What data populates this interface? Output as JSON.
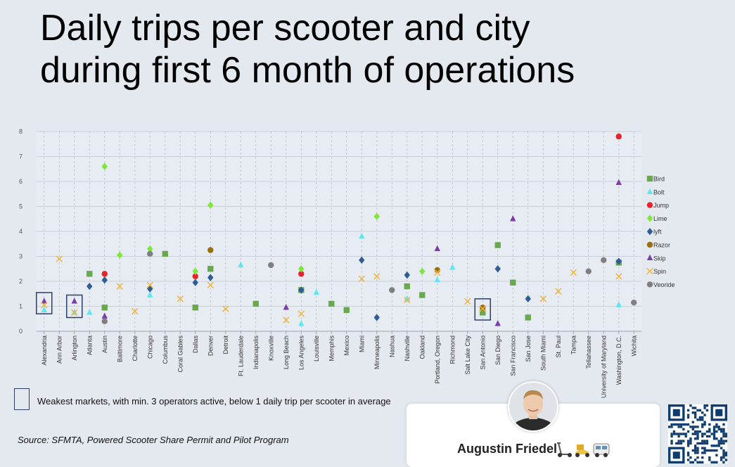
{
  "title_line1": "Daily trips per scooter and city",
  "title_line2": "during first 6 month of operations",
  "legend_note": "Weakest markets, with min. 3 operators active, below 1 daily trip per scooter in average",
  "source": "Source: SFMTA, Powered Scooter Share Permit and Pilot Program",
  "author": "Augustin Friedel",
  "author_icons": [
    "scooter-icon",
    "delivery-scooter-icon",
    "minibus-icon"
  ],
  "chart_data": {
    "type": "scatter",
    "title": "",
    "xlabel": "",
    "ylabel": "",
    "ylim": [
      0,
      8
    ],
    "yticks": [
      0,
      1,
      2,
      3,
      4,
      5,
      6,
      7,
      8
    ],
    "grid": true,
    "legend_position": "right",
    "categories": [
      "Alexandria",
      "Ann Arbor",
      "Arlington",
      "Atlanta",
      "Austin",
      "Baltimore",
      "Charlotte",
      "Chicago",
      "Columbus",
      "Coral Gables",
      "Dallas",
      "Denver",
      "Detroit",
      "Ft. Lauderdale",
      "Indianapolis",
      "Knoxville",
      "Long Beach",
      "Los Angeles",
      "Louisville",
      "Memphis",
      "Mexico",
      "Miami",
      "Minneapolis",
      "Nashua",
      "Nashville",
      "Oakland",
      "Portland, Oregon",
      "Richmond",
      "Salt Lake City",
      "San Antonio",
      "San Diego",
      "San Francisco",
      "San Jose",
      "South Miami",
      "St. Paul",
      "Tampa",
      "Tellahassee",
      "University of Maryland",
      "Washington, D.C.",
      "Wichita"
    ],
    "highlighted_categories": [
      "Alexandria",
      "Arlington",
      "San Antonio"
    ],
    "series": [
      {
        "name": "Bird",
        "color": "#6aa84f",
        "marker": "square",
        "points": [
          [
            "Atlanta",
            2.3
          ],
          [
            "Austin",
            0.95
          ],
          [
            "Columbus",
            3.1
          ],
          [
            "Dallas",
            0.95
          ],
          [
            "Denver",
            2.5
          ],
          [
            "Indianapolis",
            1.1
          ],
          [
            "Los Angeles",
            1.65
          ],
          [
            "Memphis",
            1.1
          ],
          [
            "Mexico",
            0.85
          ],
          [
            "Nashville",
            1.8
          ],
          [
            "Oakland",
            1.45
          ],
          [
            "San Antonio",
            0.75
          ],
          [
            "San Diego",
            3.45
          ],
          [
            "San Francisco",
            1.95
          ],
          [
            "San Jose",
            0.55
          ],
          [
            "Washington, D.C.",
            2.75
          ]
        ]
      },
      {
        "name": "Bolt",
        "color": "#5fe6f0",
        "marker": "triangle",
        "points": [
          [
            "Alexandria",
            0.85
          ],
          [
            "Arlington",
            0.75
          ],
          [
            "Atlanta",
            0.75
          ],
          [
            "Chicago",
            1.45
          ],
          [
            "Ft. Lauderdale",
            2.65
          ],
          [
            "Los Angeles",
            0.3
          ],
          [
            "Louisville",
            1.55
          ],
          [
            "Miami",
            3.8
          ],
          [
            "Nashville",
            1.3
          ],
          [
            "Portland, Oregon",
            2.05
          ],
          [
            "Richmond",
            2.55
          ],
          [
            "Washington, D.C.",
            1.05
          ]
        ]
      },
      {
        "name": "Jump",
        "color": "#e3242b",
        "marker": "circle",
        "points": [
          [
            "Austin",
            2.3
          ],
          [
            "Dallas",
            2.2
          ],
          [
            "Los Angeles",
            2.3
          ],
          [
            "Washington, D.C.",
            7.8
          ]
        ]
      },
      {
        "name": "Lime",
        "color": "#7ee83a",
        "marker": "diamond",
        "points": [
          [
            "Austin",
            6.6
          ],
          [
            "Baltimore",
            3.05
          ],
          [
            "Chicago",
            3.3
          ],
          [
            "Dallas",
            2.4
          ],
          [
            "Denver",
            5.05
          ],
          [
            "Los Angeles",
            2.5
          ],
          [
            "Minneapolis",
            4.6
          ],
          [
            "Oakland",
            2.4
          ]
        ]
      },
      {
        "name": "lyft",
        "color": "#2e5e95",
        "marker": "diamond",
        "points": [
          [
            "Atlanta",
            1.8
          ],
          [
            "Austin",
            2.05
          ],
          [
            "Chicago",
            1.7
          ],
          [
            "Dallas",
            1.95
          ],
          [
            "Denver",
            2.15
          ],
          [
            "Los Angeles",
            1.65
          ],
          [
            "Miami",
            2.85
          ],
          [
            "Minneapolis",
            0.55
          ],
          [
            "Nashville",
            2.25
          ],
          [
            "San Diego",
            2.5
          ],
          [
            "San Jose",
            1.3
          ],
          [
            "Washington, D.C.",
            2.8
          ]
        ]
      },
      {
        "name": "Razor",
        "color": "#9a6f0e",
        "marker": "circle",
        "points": [
          [
            "Denver",
            3.25
          ],
          [
            "Portland, Oregon",
            2.45
          ],
          [
            "San Antonio",
            0.95
          ]
        ]
      },
      {
        "name": "Skip",
        "color": "#7a3ea8",
        "marker": "triangle",
        "points": [
          [
            "Alexandria",
            1.2
          ],
          [
            "Arlington",
            1.2
          ],
          [
            "Austin",
            0.6
          ],
          [
            "Long Beach",
            0.95
          ],
          [
            "Portland, Oregon",
            3.3
          ],
          [
            "San Diego",
            0.3
          ],
          [
            "San Francisco",
            4.5
          ],
          [
            "Washington, D.C.",
            5.95
          ]
        ]
      },
      {
        "name": "Spin",
        "color": "#f0b43c",
        "marker": "x",
        "points": [
          [
            "Alexandria",
            1.05
          ],
          [
            "Ann Arbor",
            2.9
          ],
          [
            "Arlington",
            0.75
          ],
          [
            "Baltimore",
            1.8
          ],
          [
            "Charlotte",
            0.8
          ],
          [
            "Chicago",
            1.85
          ],
          [
            "Coral Gables",
            1.3
          ],
          [
            "Denver",
            1.85
          ],
          [
            "Detroit",
            0.9
          ],
          [
            "Long Beach",
            0.45
          ],
          [
            "Los Angeles",
            0.7
          ],
          [
            "Miami",
            2.1
          ],
          [
            "Minneapolis",
            2.2
          ],
          [
            "Nashville",
            1.25
          ],
          [
            "Portland, Oregon",
            2.35
          ],
          [
            "Salt Lake City",
            1.2
          ],
          [
            "San Antonio",
            0.9
          ],
          [
            "South Miami",
            1.3
          ],
          [
            "St. Paul",
            1.6
          ],
          [
            "Tampa",
            2.35
          ],
          [
            "Washington, D.C.",
            2.2
          ]
        ]
      },
      {
        "name": "Veoride",
        "color": "#7f7f7f",
        "marker": "circle",
        "points": [
          [
            "Austin",
            0.4
          ],
          [
            "Chicago",
            3.1
          ],
          [
            "Knoxville",
            2.65
          ],
          [
            "Nashua",
            1.65
          ],
          [
            "Tellahassee",
            2.4
          ],
          [
            "University of Maryland",
            2.85
          ],
          [
            "Wichita",
            1.15
          ]
        ]
      }
    ]
  }
}
